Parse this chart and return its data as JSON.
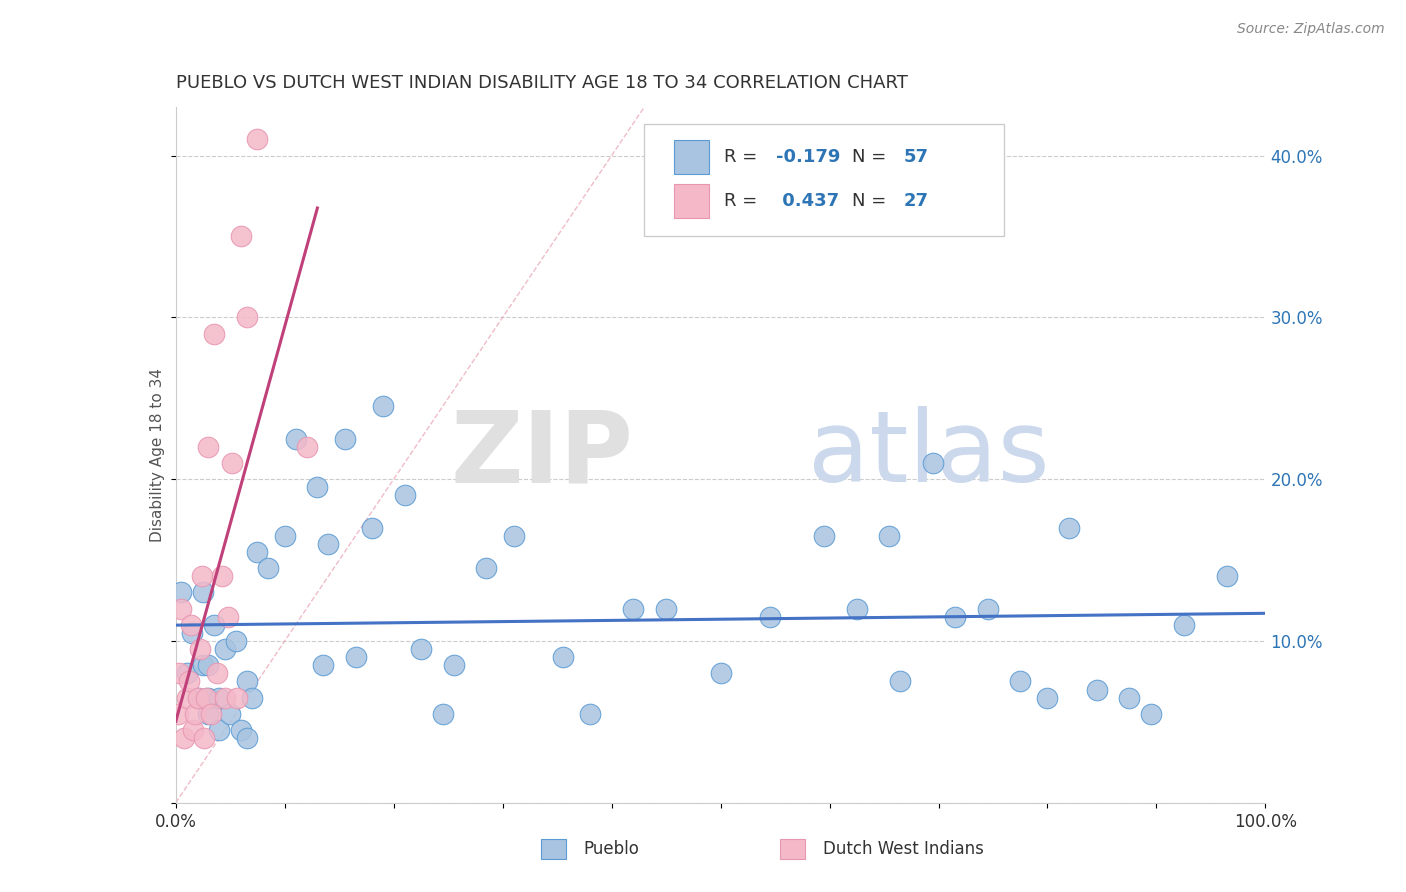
{
  "title": "PUEBLO VS DUTCH WEST INDIAN DISABILITY AGE 18 TO 34 CORRELATION CHART",
  "source": "Source: ZipAtlas.com",
  "ylabel": "Disability Age 18 to 34",
  "xlim": [
    0.0,
    1.0
  ],
  "ylim": [
    0.0,
    0.43
  ],
  "xtick_positions": [
    0.0,
    0.1,
    0.2,
    0.3,
    0.4,
    0.5,
    0.6,
    0.7,
    0.8,
    0.9,
    1.0
  ],
  "xtick_labels_show": {
    "0.0": "0.0%",
    "1.0": "100.0%"
  },
  "ytick_positions": [
    0.0,
    0.1,
    0.2,
    0.3,
    0.4
  ],
  "right_ytick_labels": [
    "",
    "10.0%",
    "20.0%",
    "30.0%",
    "40.0%"
  ],
  "pueblo_color": "#a8c4e0",
  "pueblo_edge_color": "#5b9bd5",
  "pueblo_line_color": "#4472c4",
  "dutch_color": "#f4b8c8",
  "dutch_edge_color": "#e896b0",
  "dutch_line_color": "#c0417a",
  "diag_line_color": "#e8a0b0",
  "legend_text_color": "#333333",
  "legend_value_color": "#2e75b6",
  "pueblo_R": -0.179,
  "pueblo_N": 57,
  "dutch_R": 0.437,
  "dutch_N": 27,
  "pueblo_scatter_x": [
    0.005,
    0.01,
    0.015,
    0.02,
    0.025,
    0.025,
    0.03,
    0.03,
    0.03,
    0.035,
    0.04,
    0.04,
    0.045,
    0.05,
    0.055,
    0.06,
    0.065,
    0.065,
    0.07,
    0.075,
    0.085,
    0.1,
    0.11,
    0.13,
    0.135,
    0.14,
    0.155,
    0.165,
    0.18,
    0.19,
    0.21,
    0.225,
    0.245,
    0.255,
    0.285,
    0.31,
    0.355,
    0.38,
    0.42,
    0.45,
    0.5,
    0.545,
    0.595,
    0.625,
    0.655,
    0.665,
    0.695,
    0.715,
    0.745,
    0.775,
    0.8,
    0.82,
    0.845,
    0.875,
    0.895,
    0.925,
    0.965
  ],
  "pueblo_scatter_y": [
    0.13,
    0.08,
    0.105,
    0.065,
    0.085,
    0.13,
    0.055,
    0.065,
    0.085,
    0.11,
    0.045,
    0.065,
    0.095,
    0.055,
    0.1,
    0.045,
    0.075,
    0.04,
    0.065,
    0.155,
    0.145,
    0.165,
    0.225,
    0.195,
    0.085,
    0.16,
    0.225,
    0.09,
    0.17,
    0.245,
    0.19,
    0.095,
    0.055,
    0.085,
    0.145,
    0.165,
    0.09,
    0.055,
    0.12,
    0.12,
    0.08,
    0.115,
    0.165,
    0.12,
    0.165,
    0.075,
    0.21,
    0.115,
    0.12,
    0.075,
    0.065,
    0.17,
    0.07,
    0.065,
    0.055,
    0.11,
    0.14
  ],
  "dutch_scatter_x": [
    0.002,
    0.003,
    0.005,
    0.008,
    0.01,
    0.012,
    0.014,
    0.016,
    0.018,
    0.02,
    0.022,
    0.024,
    0.026,
    0.028,
    0.03,
    0.032,
    0.035,
    0.038,
    0.042,
    0.045,
    0.048,
    0.052,
    0.056,
    0.06,
    0.065,
    0.075,
    0.12
  ],
  "dutch_scatter_y": [
    0.055,
    0.08,
    0.12,
    0.04,
    0.065,
    0.075,
    0.11,
    0.045,
    0.055,
    0.065,
    0.095,
    0.14,
    0.04,
    0.065,
    0.22,
    0.055,
    0.29,
    0.08,
    0.14,
    0.065,
    0.115,
    0.21,
    0.065,
    0.35,
    0.3,
    0.41,
    0.22
  ]
}
